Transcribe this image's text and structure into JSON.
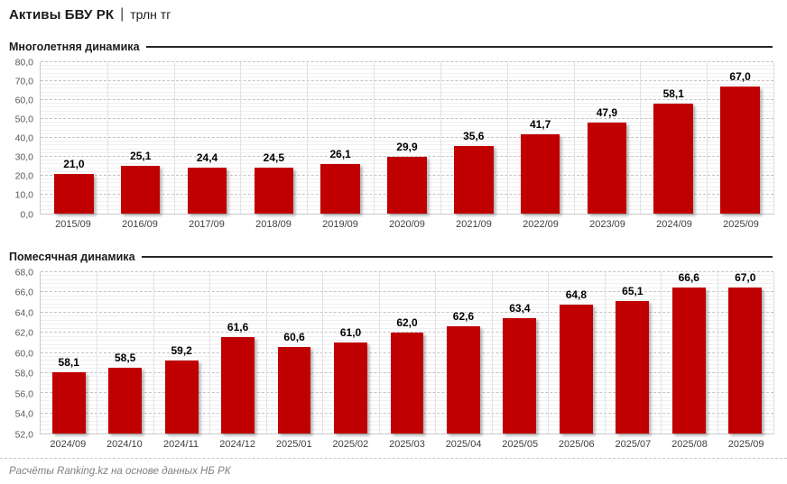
{
  "header": {
    "title": "Активы БВУ РК",
    "separator": "|",
    "unit": "трлн тг"
  },
  "footer": {
    "text": "Расчёты Ranking.kz на основе данных НБ РК"
  },
  "colors": {
    "bar": "#c00000",
    "bar_label": "#000000",
    "y_axis_text": "#595959",
    "x_axis_text": "#404040",
    "major_gridline": "#c3c3c3",
    "minor_gridline": "#efefef",
    "section_rule": "#262626",
    "footer_text": "#808080"
  },
  "chart_data": [
    {
      "type": "bar",
      "title": "Многолетняя динамика",
      "categories": [
        "2015/09",
        "2016/09",
        "2017/09",
        "2018/09",
        "2019/09",
        "2020/09",
        "2021/09",
        "2022/09",
        "2023/09",
        "2024/09",
        "2025/09"
      ],
      "values": [
        21.0,
        25.1,
        24.4,
        24.5,
        26.1,
        29.9,
        35.6,
        41.7,
        47.9,
        58.1,
        67.0
      ],
      "value_labels": [
        "21,0",
        "25,1",
        "24,4",
        "24,5",
        "26,1",
        "29,9",
        "35,6",
        "41,7",
        "47,9",
        "58,1",
        "67,0"
      ],
      "xlabel": "",
      "ylabel": "",
      "ylim": [
        0,
        80
      ],
      "ytick_major": 10,
      "ytick_minor": 2,
      "ytick_labels": [
        "80,0",
        "70,0",
        "60,0",
        "50,0",
        "40,0",
        "30,0",
        "20,0",
        "10,0",
        "0,0"
      ],
      "grid": true,
      "legend": "none"
    },
    {
      "type": "bar",
      "title": "Помесячная динамика",
      "categories": [
        "2024/09",
        "2024/10",
        "2024/11",
        "2024/12",
        "2025/01",
        "2025/02",
        "2025/03",
        "2025/04",
        "2025/05",
        "2025/06",
        "2025/07",
        "2025/08",
        "2025/09"
      ],
      "values": [
        58.1,
        58.5,
        59.2,
        61.6,
        60.6,
        61.0,
        62.0,
        62.6,
        63.4,
        64.8,
        65.1,
        66.6,
        67.0
      ],
      "value_labels": [
        "58,1",
        "58,5",
        "59,2",
        "61,6",
        "60,6",
        "61,0",
        "62,0",
        "62,6",
        "63,4",
        "64,8",
        "65,1",
        "66,6",
        "67,0"
      ],
      "xlabel": "",
      "ylabel": "",
      "ylim": [
        52,
        68
      ],
      "ytick_major": 2,
      "ytick_minor": 0.4,
      "ytick_labels": [
        "68,0",
        "66,0",
        "64,0",
        "62,0",
        "60,0",
        "58,0",
        "56,0",
        "54,0",
        "52,0"
      ],
      "grid": true,
      "legend": "none"
    }
  ]
}
